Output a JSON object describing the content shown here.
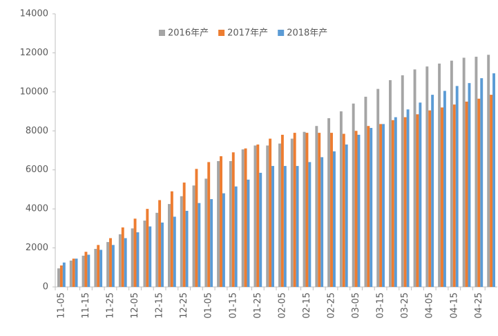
{
  "chart_data": {
    "type": "bar",
    "categories": [
      "11-05",
      null,
      "11-15",
      null,
      "11-25",
      null,
      "12-05",
      null,
      "12-15",
      null,
      "12-25",
      null,
      "01-05",
      null,
      "01-15",
      null,
      "01-25",
      null,
      "02-05",
      null,
      "02-15",
      null,
      "02-25",
      null,
      "03-05",
      null,
      "03-15",
      null,
      "03-25",
      null,
      "04-05",
      null,
      "04-15",
      null,
      "04-25",
      null
    ],
    "series": [
      {
        "name": "2016年产",
        "color": "#a5a5a5",
        "values": [
          950,
          1350,
          1600,
          1950,
          2300,
          2700,
          3000,
          3400,
          3800,
          4250,
          4650,
          5200,
          5550,
          6450,
          6450,
          7050,
          7250,
          7250,
          7350,
          7600,
          7950,
          8250,
          8650,
          9000,
          9400,
          9750,
          10150,
          10600,
          10850,
          11150,
          11300,
          11450,
          11600,
          11750,
          11800,
          11900
        ]
      },
      {
        "name": "2017年产",
        "color": "#ed7d31",
        "values": [
          1100,
          1450,
          1800,
          2150,
          2500,
          3050,
          3500,
          4000,
          4450,
          4900,
          5350,
          6050,
          6400,
          6700,
          6900,
          7100,
          7300,
          7600,
          7800,
          7900,
          7900,
          7900,
          7900,
          7850,
          8000,
          8250,
          8350,
          8550,
          8700,
          8850,
          9050,
          9200,
          9350,
          9500,
          9650,
          9850
        ]
      },
      {
        "name": "2018年产",
        "color": "#5b9bd5",
        "values": [
          1250,
          1450,
          1650,
          1900,
          2150,
          2500,
          2800,
          3100,
          3300,
          3600,
          3900,
          4300,
          4500,
          4800,
          5150,
          5500,
          5850,
          6200,
          6200,
          6200,
          6400,
          6650,
          6950,
          7300,
          7800,
          8150,
          8350,
          8700,
          9100,
          9450,
          9850,
          10050,
          10300,
          10450,
          10700,
          10950
        ]
      }
    ],
    "ylim": [
      0,
      14000
    ],
    "yticks": [
      0,
      2000,
      4000,
      6000,
      8000,
      10000,
      12000,
      14000
    ],
    "legend": "top"
  }
}
